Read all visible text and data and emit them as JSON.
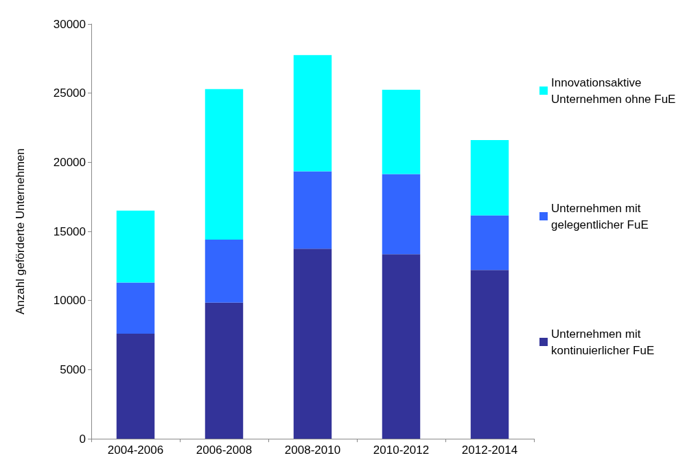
{
  "chart_data": {
    "type": "bar",
    "stacked": true,
    "ylabel": "Anzahl geförderte Unternehmen",
    "categories": [
      "2004-2006",
      "2006-2008",
      "2008-2010",
      "2010-2012",
      "2012-2014"
    ],
    "series": [
      {
        "name": "Unternehmen mit kontinuierlicher FuE",
        "color": "#333399",
        "values": [
          7600,
          9850,
          13750,
          13350,
          12200
        ]
      },
      {
        "name": "Unternehmen mit gelegentlicher FuE",
        "color": "#3366ff",
        "values": [
          3700,
          4550,
          5600,
          5800,
          3950
        ]
      },
      {
        "name": "Innovationsaktive Unternehmen ohne FuE",
        "color": "#00ffff",
        "values": [
          5200,
          10900,
          8400,
          6100,
          5450
        ]
      }
    ],
    "ylim": [
      0,
      30000
    ],
    "yticks": [
      0,
      5000,
      10000,
      15000,
      20000,
      25000,
      30000
    ],
    "grid": false,
    "legend": "right"
  }
}
